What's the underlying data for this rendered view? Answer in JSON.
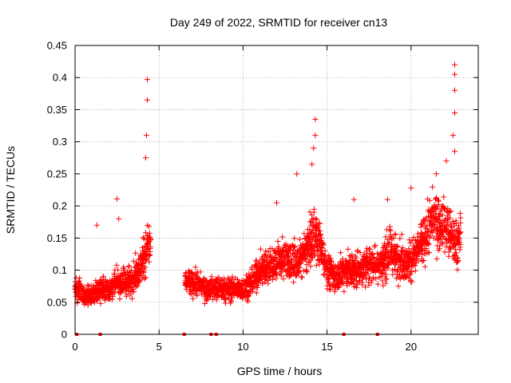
{
  "chart_data": {
    "type": "scatter",
    "title": "Day 249 of 2022, SRMTID for receiver cn13",
    "xlabel": "GPS time / hours",
    "ylabel": "SRMTID / TECUs",
    "xlim": [
      0,
      24
    ],
    "ylim": [
      0,
      0.45
    ],
    "x_ticks": [
      0,
      5,
      10,
      15,
      20
    ],
    "y_ticks": [
      0,
      0.05,
      0.1,
      0.15,
      0.2,
      0.25,
      0.3,
      0.35,
      0.4,
      0.45
    ],
    "x_tick_labels": [
      "0",
      "5",
      "10",
      "15",
      "20"
    ],
    "y_tick_labels": [
      "0",
      "0.05",
      "0.1",
      "0.15",
      "0.2",
      "0.25",
      "0.3",
      "0.35",
      "0.4",
      "0.45"
    ],
    "grid": true,
    "marker": "+",
    "color": "#ff0000",
    "series": [
      {
        "name": "SRMTID",
        "profile_x": [
          0.0,
          0.3,
          0.6,
          1.0,
          1.5,
          2.0,
          2.5,
          3.0,
          3.5,
          3.8,
          4.1,
          4.4,
          6.6,
          7.2,
          7.8,
          8.5,
          9.2,
          10.0,
          10.5,
          11.0,
          11.8,
          12.5,
          13.2,
          13.8,
          14.2,
          14.6,
          15.0,
          15.5,
          16.0,
          16.5,
          17.0,
          17.5,
          18.2,
          18.8,
          19.2,
          19.7,
          20.2,
          20.8,
          21.3,
          21.8,
          22.2,
          22.6,
          22.9
        ],
        "profile_y": [
          0.07,
          0.07,
          0.06,
          0.06,
          0.07,
          0.07,
          0.08,
          0.08,
          0.09,
          0.1,
          0.12,
          0.14,
          0.08,
          0.08,
          0.07,
          0.07,
          0.07,
          0.07,
          0.08,
          0.1,
          0.11,
          0.12,
          0.11,
          0.13,
          0.16,
          0.14,
          0.1,
          0.09,
          0.1,
          0.1,
          0.1,
          0.11,
          0.11,
          0.13,
          0.12,
          0.11,
          0.12,
          0.15,
          0.18,
          0.17,
          0.16,
          0.14,
          0.15
        ],
        "spikes": [
          {
            "x": 4.3,
            "y": 0.397
          },
          {
            "x": 4.3,
            "y": 0.365
          },
          {
            "x": 4.25,
            "y": 0.31
          },
          {
            "x": 4.2,
            "y": 0.275
          },
          {
            "x": 2.5,
            "y": 0.211
          },
          {
            "x": 2.6,
            "y": 0.18
          },
          {
            "x": 1.3,
            "y": 0.17
          },
          {
            "x": 13.2,
            "y": 0.25
          },
          {
            "x": 14.3,
            "y": 0.335
          },
          {
            "x": 14.3,
            "y": 0.31
          },
          {
            "x": 14.2,
            "y": 0.29
          },
          {
            "x": 14.1,
            "y": 0.265
          },
          {
            "x": 12.0,
            "y": 0.205
          },
          {
            "x": 16.6,
            "y": 0.21
          },
          {
            "x": 18.6,
            "y": 0.21
          },
          {
            "x": 20.0,
            "y": 0.228
          },
          {
            "x": 22.6,
            "y": 0.42
          },
          {
            "x": 22.6,
            "y": 0.405
          },
          {
            "x": 22.6,
            "y": 0.38
          },
          {
            "x": 22.6,
            "y": 0.345
          },
          {
            "x": 22.5,
            "y": 0.31
          },
          {
            "x": 22.6,
            "y": 0.285
          },
          {
            "x": 22.1,
            "y": 0.27
          },
          {
            "x": 21.5,
            "y": 0.25
          }
        ],
        "gaps": [
          [
            4.5,
            6.55
          ],
          [
            23.0,
            24.0
          ]
        ],
        "zero_points_x": [
          0.1,
          1.5,
          6.5,
          8.1,
          8.4,
          16.0,
          18.0
        ]
      }
    ]
  }
}
